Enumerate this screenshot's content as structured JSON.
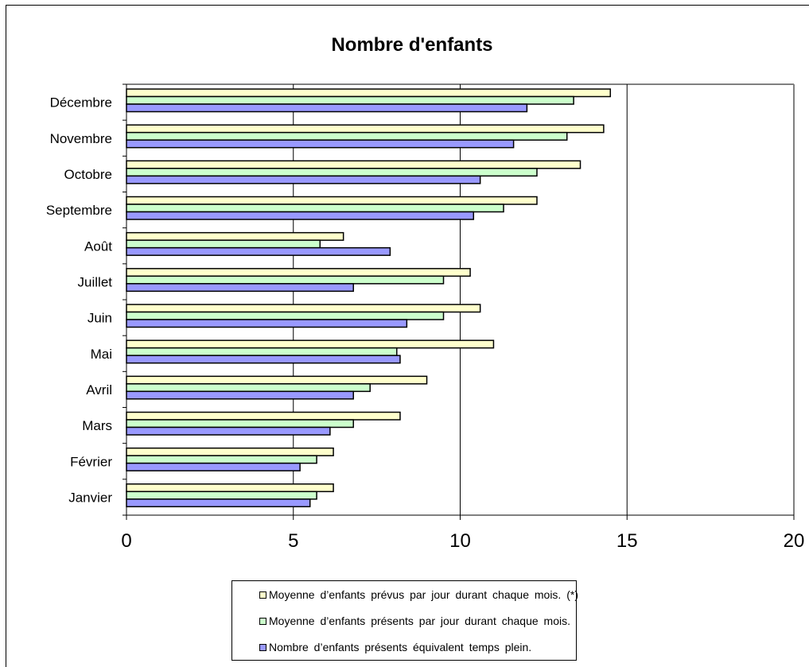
{
  "chart_data": {
    "type": "bar",
    "orientation": "horizontal",
    "title": "Nombre d'enfants",
    "categories": [
      "Janvier",
      "Février",
      "Mars",
      "Avril",
      "Mai",
      "Juin",
      "Juillet",
      "Août",
      "Septembre",
      "Octobre",
      "Novembre",
      "Décembre"
    ],
    "series": [
      {
        "name": "Moyenne  d’enfants  prévus  par  jour  durant  chaque  mois.  (*)",
        "color": "#ffffcc",
        "values": [
          6.2,
          6.2,
          8.2,
          9.0,
          11.0,
          10.6,
          10.3,
          6.5,
          12.3,
          13.6,
          14.3,
          14.5
        ]
      },
      {
        "name": "Moyenne  d’enfants  présents  par  jour  durant  chaque  mois.",
        "color": "#ccffcc",
        "values": [
          5.7,
          5.7,
          6.8,
          7.3,
          8.1,
          9.5,
          9.5,
          5.8,
          11.3,
          12.3,
          13.2,
          13.4
        ]
      },
      {
        "name": "Nombre  d’enfants  présents  équivalent  temps  plein.",
        "color": "#9999ff",
        "values": [
          5.5,
          5.2,
          6.1,
          6.8,
          8.2,
          8.4,
          6.8,
          7.9,
          10.4,
          10.6,
          11.6,
          12.0
        ]
      }
    ],
    "xlim": [
      0,
      20
    ],
    "xticks": [
      0,
      5,
      10,
      15,
      20
    ],
    "grid": "vertical",
    "legend_position": "bottom"
  }
}
